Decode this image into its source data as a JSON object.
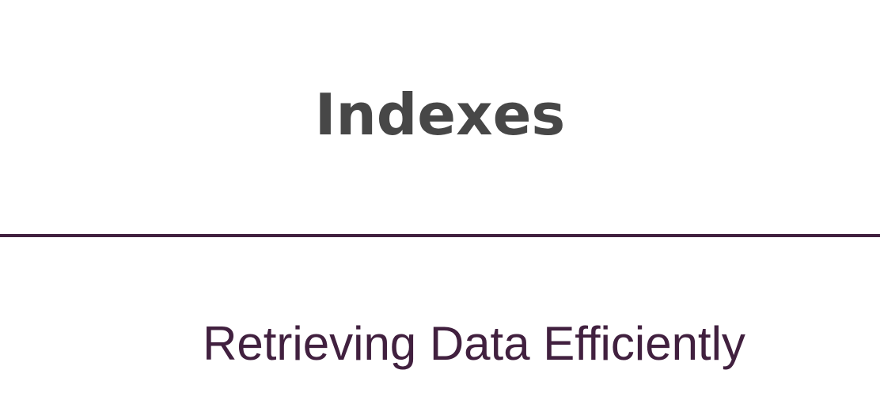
{
  "slide": {
    "title": "Indexes",
    "subtitle": "Retrieving Data Efficiently"
  },
  "colors": {
    "title": "#474747",
    "accent": "#41203f",
    "background": "#ffffff"
  }
}
